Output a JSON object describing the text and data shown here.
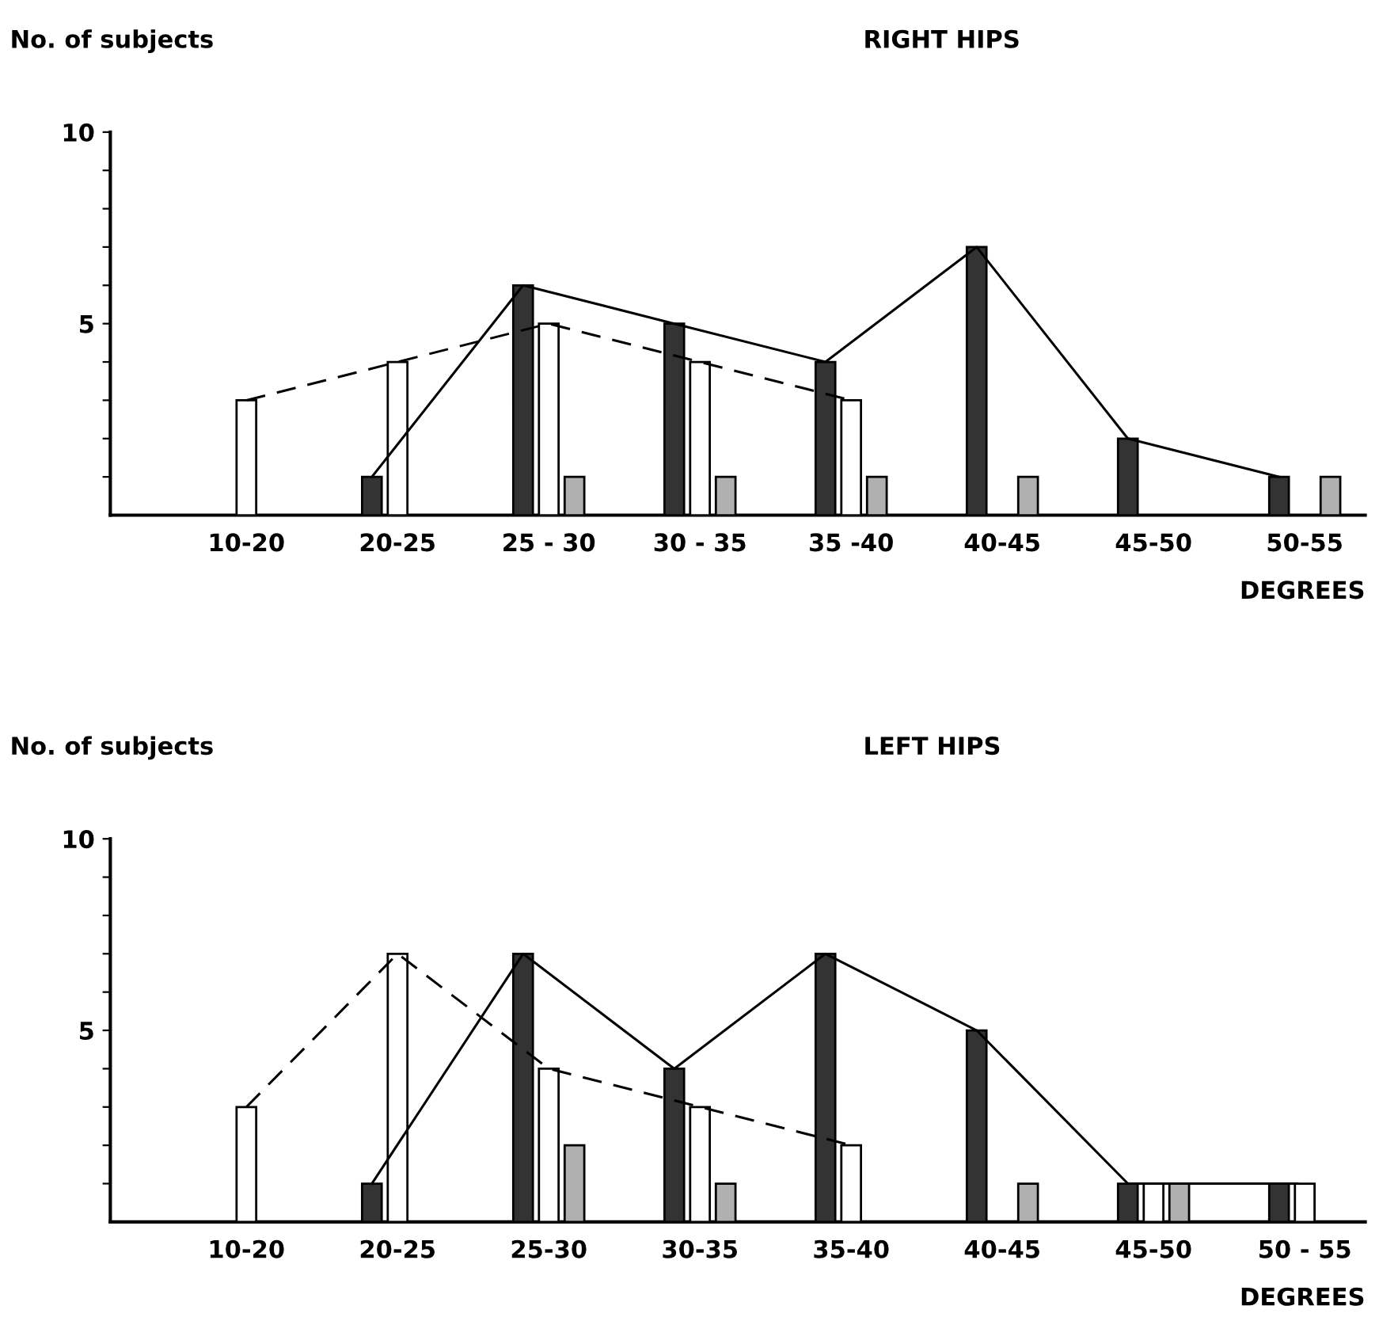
{
  "chart_data": [
    {
      "type": "bar",
      "title": "RIGHT HIPS",
      "ylabel": "No. of subjects",
      "xlabel": "DEGREES",
      "categories": [
        "10-20",
        "20-25",
        "25 - 30",
        "30 - 35",
        "35 -40",
        "40-45",
        "45-50",
        "50-55"
      ],
      "series": [
        {
          "color": "#333333",
          "line_style": "solid",
          "values": [
            null,
            1,
            6,
            5,
            4,
            7,
            2,
            1
          ]
        },
        {
          "color": "#ffffff",
          "line_style": "dashed",
          "values": [
            3,
            4,
            5,
            4,
            3,
            null,
            null,
            null
          ]
        },
        {
          "color": "#b0b0b0",
          "values": [
            null,
            null,
            1,
            1,
            1,
            1,
            null,
            1
          ]
        }
      ],
      "ylim": [
        0,
        10
      ],
      "yticks": [
        {
          "value": 1,
          "label": null
        },
        {
          "value": 2,
          "label": null
        },
        {
          "value": 3,
          "label": null
        },
        {
          "value": 4,
          "label": null
        },
        5,
        {
          "value": 6,
          "label": null
        },
        {
          "value": 7,
          "label": null
        },
        {
          "value": 8,
          "label": null
        },
        {
          "value": 9,
          "label": null
        },
        10
      ],
      "grid": false,
      "legend": false
    },
    {
      "type": "bar",
      "title": "LEFT HIPS",
      "ylabel": "No. of subjects",
      "xlabel": "DEGREES",
      "categories": [
        "10-20",
        "20-25",
        "25-30",
        "30-35",
        "35-40",
        "40-45",
        "45-50",
        "50 - 55"
      ],
      "series": [
        {
          "color": "#333333",
          "line_style": "solid",
          "values": [
            null,
            1,
            7,
            4,
            7,
            5,
            1,
            1
          ]
        },
        {
          "color": "#ffffff",
          "line_style": "dashed",
          "values": [
            3,
            7,
            4,
            3,
            2,
            null,
            1,
            1
          ]
        },
        {
          "color": "#b0b0b0",
          "values": [
            null,
            null,
            2,
            1,
            null,
            1,
            1,
            null
          ]
        }
      ],
      "ylim": [
        0,
        10
      ],
      "yticks": [
        {
          "value": 1,
          "label": null
        },
        {
          "value": 2,
          "label": null
        },
        {
          "value": 3,
          "label": null
        },
        {
          "value": 4,
          "label": null
        },
        5,
        {
          "value": 6,
          "label": null
        },
        {
          "value": 7,
          "label": null
        },
        {
          "value": 8,
          "label": null
        },
        {
          "value": 9,
          "label": null
        },
        10
      ],
      "grid": false,
      "legend": false
    }
  ]
}
